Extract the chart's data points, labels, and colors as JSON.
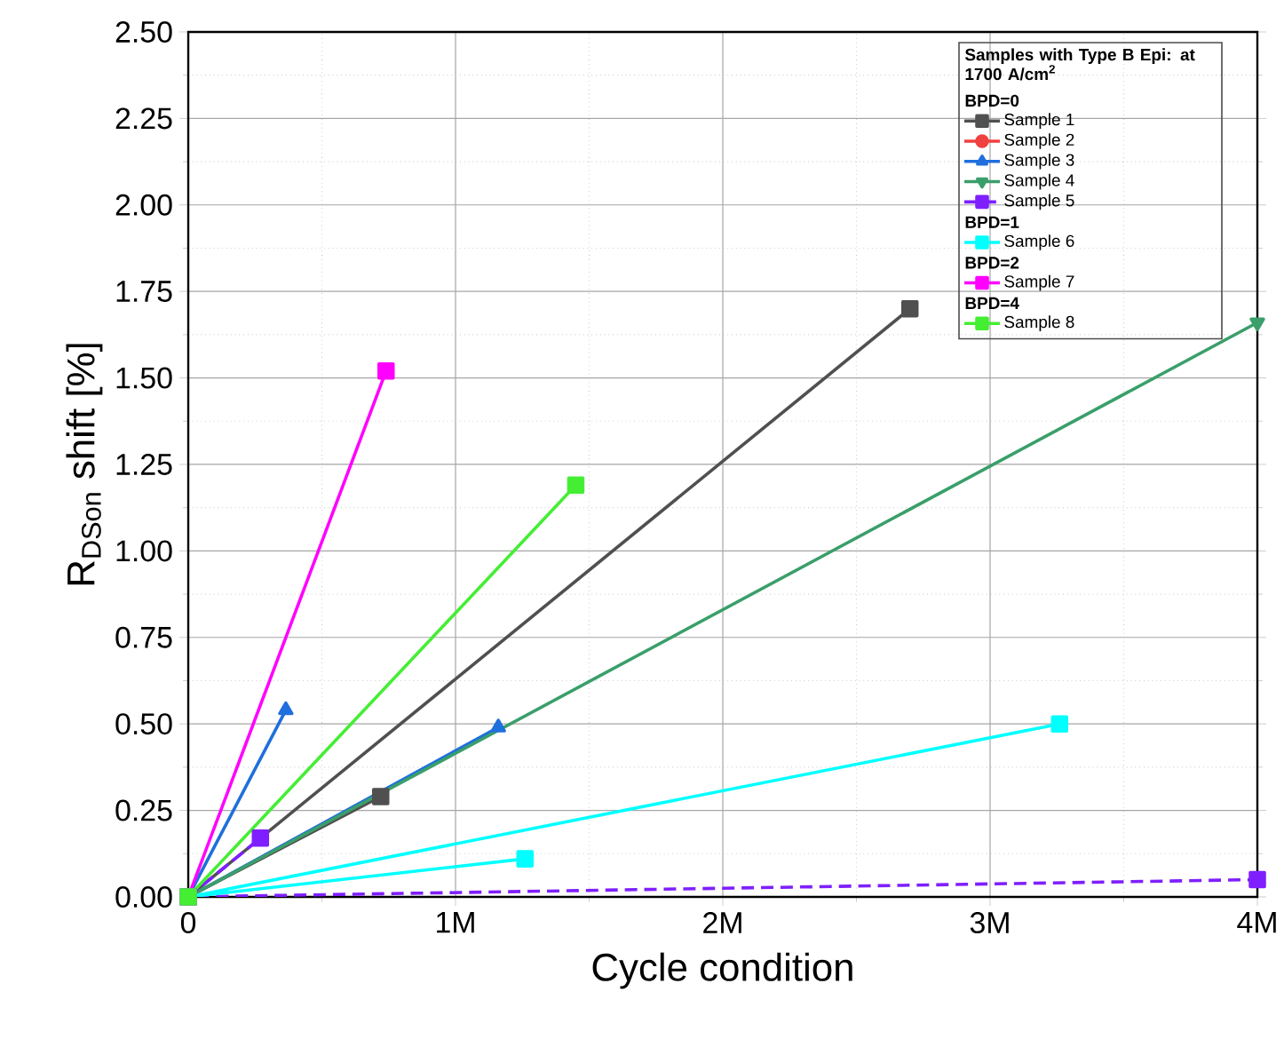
{
  "chart_data": {
    "type": "line",
    "xlabel": "Cycle condition",
    "ylabel": "R$_{DSon}$ shift [%]",
    "legend_title": "Samples with Type B Epi: at 1700 A/cm$^{2}$",
    "annotations": [
      "BPD=0",
      "BPD=1",
      "BPD=2",
      "BPD=4"
    ],
    "xlim": [
      0,
      4000000
    ],
    "ylim": [
      0,
      2.5
    ],
    "xticks": [
      0,
      {
        "value": 1000000,
        "label": "1M"
      },
      {
        "value": 2000000,
        "label": "2M"
      },
      {
        "value": 3000000,
        "label": "3M"
      },
      {
        "value": 4000000,
        "label": "4M"
      }
    ],
    "yticks": [
      {
        "value": 0,
        "label": "0.00"
      },
      0.25,
      {
        "value": 0.5,
        "label": "0.50"
      },
      0.75,
      {
        "value": 1,
        "label": "1.00"
      },
      1.25,
      {
        "value": 1.5,
        "label": "1.50"
      },
      1.75,
      {
        "value": 2,
        "label": "2.00"
      },
      2.25,
      {
        "value": 2.5,
        "label": "2.50"
      }
    ],
    "grid": true,
    "legend": "top right",
    "line_style": "solid",
    "series": [
      {
        "name": "Sample 1",
        "color": "#505050",
        "marker": "square",
        "x": [
          0,
          720000,
          0,
          2700000
        ],
        "values": [
          0,
          0.29,
          0,
          1.7
        ]
      },
      {
        "name": "Sample 2",
        "color": "#f04040",
        "marker": "circle"
      },
      {
        "name": "Sample 3",
        "color": "#1f6fdc",
        "marker": "triangle",
        "x": [
          0,
          365000,
          0,
          1160000
        ],
        "values": [
          0,
          0.54,
          0,
          0.49
        ]
      },
      {
        "name": "Sample 4",
        "color": "#3a9f6a",
        "marker": "triangle-down",
        "x": [
          0,
          4000000
        ],
        "values": [
          0,
          1.66
        ]
      },
      {
        "name": "Sample 5",
        "color": "#7f1fff",
        "marker": "square",
        "line_style": "dashed",
        "x": [
          0,
          270000,
          0,
          4000000
        ],
        "values": [
          0,
          0.17,
          0,
          0.05
        ]
      },
      {
        "name": "Sample 6",
        "color": "#00ffff",
        "marker": "square",
        "x": [
          0,
          1260000,
          0,
          3260000
        ],
        "values": [
          0,
          0.11,
          0,
          0.5
        ]
      },
      {
        "name": "Sample 7",
        "color": "#ff00ff",
        "marker": "square",
        "x": [
          0,
          740000
        ],
        "values": [
          0,
          1.52
        ]
      },
      {
        "name": "Sample 8",
        "color": "#44ee33",
        "marker": "square",
        "x": [
          0,
          1450000
        ],
        "values": [
          0,
          1.19
        ]
      }
    ]
  }
}
